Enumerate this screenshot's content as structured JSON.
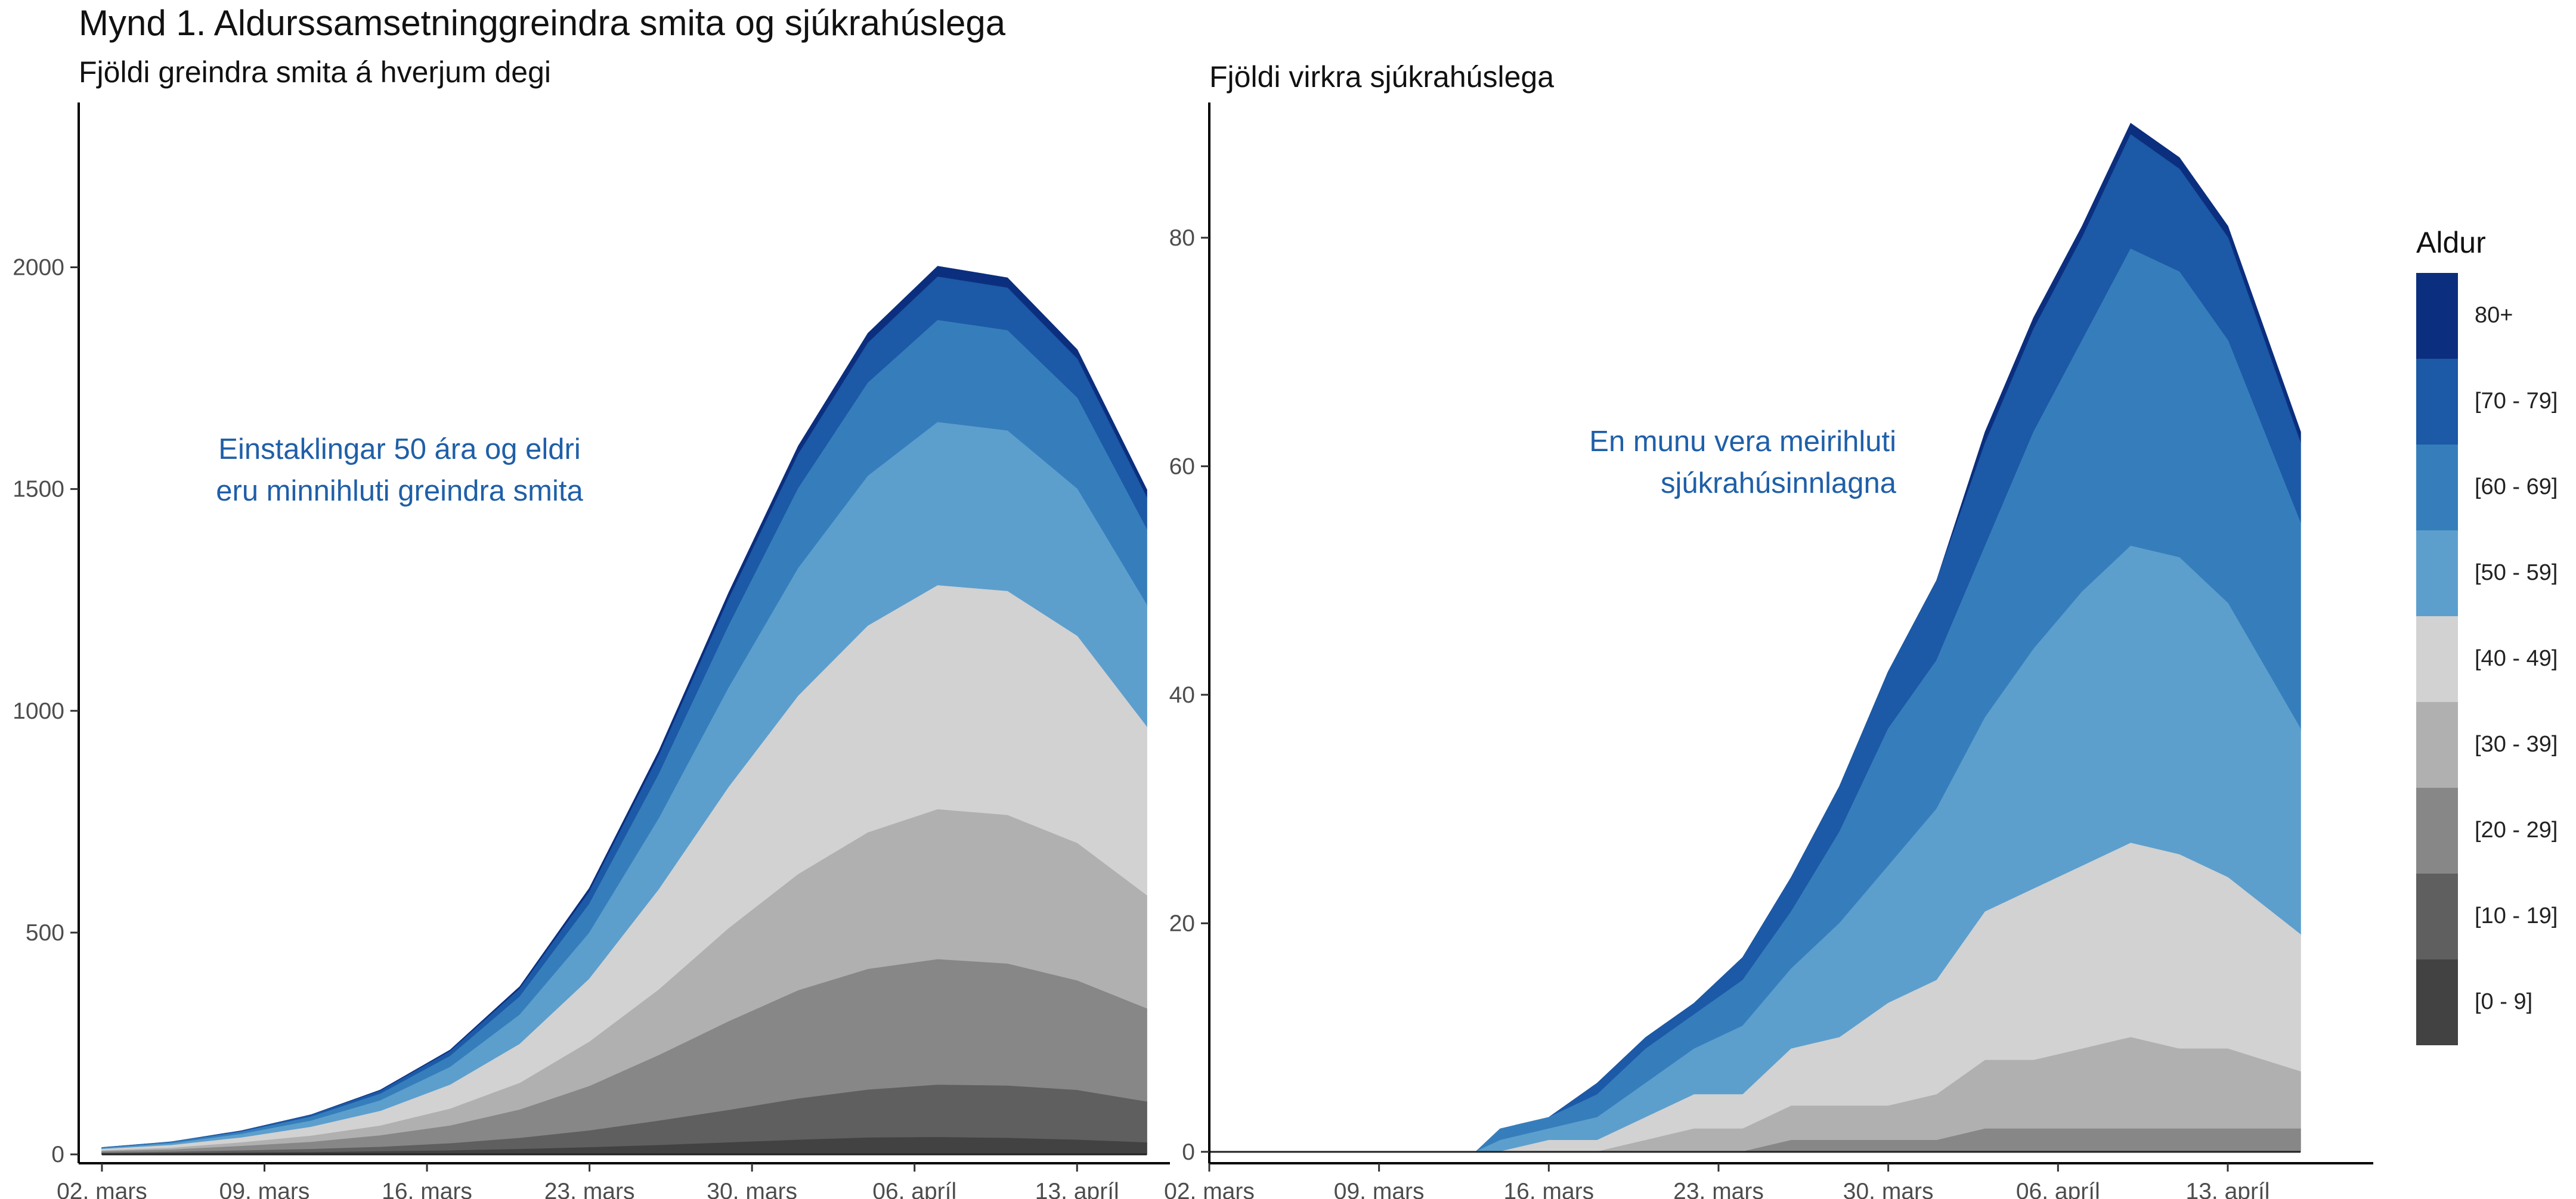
{
  "title": "Mynd 1. Aldurssamsetninggreindra smita og sjúkrahúslega",
  "legend": {
    "title": "Aldur",
    "entries": [
      {
        "label": "80+",
        "color": "#0b2f7e"
      },
      {
        "label": "[70 - 79]",
        "color": "#1c59a6"
      },
      {
        "label": "[60 - 69]",
        "color": "#367ebb"
      },
      {
        "label": "[50 - 59]",
        "color": "#5c9fcd"
      },
      {
        "label": "[40 - 49]",
        "color": "#d2d2d2"
      },
      {
        "label": "[30 - 39]",
        "color": "#b0b0b0"
      },
      {
        "label": "[20 - 29]",
        "color": "#878787"
      },
      {
        "label": "[10 - 19]",
        "color": "#5f5f5f"
      },
      {
        "label": "[0 - 9]",
        "color": "#424242"
      }
    ]
  },
  "chart_data": [
    {
      "type": "area",
      "stacked": true,
      "title": "Fjöldi greindra smita á hverjum degi",
      "xlabel": "",
      "ylabel": "",
      "x_dates": [
        "2020-03-02",
        "2020-03-05",
        "2020-03-08",
        "2020-03-11",
        "2020-03-14",
        "2020-03-17",
        "2020-03-20",
        "2020-03-23",
        "2020-03-26",
        "2020-03-29",
        "2020-04-01",
        "2020-04-04",
        "2020-04-07",
        "2020-04-10",
        "2020-04-13",
        "2020-04-16"
      ],
      "x_ticks": [
        "02. mars",
        "09. mars",
        "16. mars",
        "23. mars",
        "30. mars",
        "06. apríl",
        "13. apríl"
      ],
      "x_range": [
        "2020-03-01",
        "2020-04-17"
      ],
      "y_ticks": [
        0,
        500,
        1000,
        1500,
        2000
      ],
      "ylim": [
        -20,
        2350
      ],
      "grid": false,
      "annotation": "Einstaklingar 50 ára og eldri\neru minnihluti greindra smita",
      "series": [
        {
          "name": "[0 - 9]",
          "values": [
            1,
            2,
            3,
            4,
            6,
            8,
            11,
            15,
            20,
            26,
            32,
            37,
            38,
            36,
            32,
            26
          ]
        },
        {
          "name": "[10 - 19]",
          "values": [
            2,
            3,
            5,
            7,
            10,
            16,
            25,
            38,
            55,
            73,
            93,
            108,
            118,
            118,
            112,
            92
          ]
        },
        {
          "name": "[20 - 29]",
          "values": [
            3,
            5,
            10,
            16,
            26,
            40,
            64,
            100,
            148,
            200,
            244,
            272,
            283,
            275,
            247,
            210
          ]
        },
        {
          "name": "[30 - 39]",
          "values": [
            2,
            4,
            8,
            14,
            22,
            38,
            60,
            100,
            148,
            210,
            262,
            308,
            338,
            335,
            310,
            255
          ]
        },
        {
          "name": "[40 - 49]",
          "values": [
            3,
            6,
            11,
            20,
            33,
            54,
            88,
            142,
            226,
            318,
            402,
            466,
            505,
            505,
            467,
            380
          ]
        },
        {
          "name": "[50 - 59]",
          "values": [
            2,
            4,
            8,
            14,
            24,
            40,
            66,
            104,
            160,
            224,
            288,
            338,
            368,
            362,
            332,
            275
          ]
        },
        {
          "name": "[60 - 69]",
          "values": [
            1,
            3,
            5,
            9,
            15,
            25,
            41,
            65,
            100,
            140,
            180,
            210,
            230,
            226,
            205,
            170
          ]
        },
        {
          "name": "[70 - 79]",
          "values": [
            1,
            1,
            2,
            4,
            7,
            11,
            18,
            28,
            42,
            60,
            77,
            90,
            98,
            96,
            88,
            72
          ]
        },
        {
          "name": "80+",
          "values": [
            0,
            0,
            1,
            1,
            2,
            3,
            5,
            8,
            11,
            15,
            19,
            22,
            24,
            23,
            21,
            18
          ]
        }
      ]
    },
    {
      "type": "area",
      "stacked": true,
      "title": "Fjöldi virkra sjúkrahúslega",
      "xlabel": "",
      "ylabel": "",
      "x_dates": [
        "2020-03-02",
        "2020-03-05",
        "2020-03-08",
        "2020-03-11",
        "2020-03-13",
        "2020-03-14",
        "2020-03-16",
        "2020-03-18",
        "2020-03-20",
        "2020-03-22",
        "2020-03-24",
        "2020-03-26",
        "2020-03-28",
        "2020-03-30",
        "2020-04-01",
        "2020-04-03",
        "2020-04-05",
        "2020-04-07",
        "2020-04-09",
        "2020-04-11",
        "2020-04-13",
        "2020-04-16"
      ],
      "x_ticks": [
        "02. mars",
        "09. mars",
        "16. mars",
        "23. mars",
        "30. mars",
        "06. apríl",
        "13. apríl"
      ],
      "x_range": [
        "2020-03-02",
        "2020-04-19"
      ],
      "y_ticks": [
        0,
        20,
        40,
        60,
        80
      ],
      "ylim": [
        -1,
        91
      ],
      "grid": false,
      "annotation": "En munu vera meirihluti\nsjúkrahúsinnlagna",
      "series": [
        {
          "name": "[0 - 9]",
          "values": [
            0,
            0,
            0,
            0,
            0,
            0,
            0,
            0,
            0,
            0,
            0,
            0,
            0,
            0,
            0,
            0,
            0,
            0,
            0,
            0,
            0,
            0
          ]
        },
        {
          "name": "[10 - 19]",
          "values": [
            0,
            0,
            0,
            0,
            0,
            0,
            0,
            0,
            0,
            0,
            0,
            0,
            0,
            0,
            0,
            0,
            0,
            0,
            0,
            0,
            0,
            0
          ]
        },
        {
          "name": "[20 - 29]",
          "values": [
            0,
            0,
            0,
            0,
            0,
            0,
            0,
            0,
            0,
            0,
            0,
            1,
            1,
            1,
            1,
            2,
            2,
            2,
            2,
            2,
            2,
            2
          ]
        },
        {
          "name": "[30 - 39]",
          "values": [
            0,
            0,
            0,
            0,
            0,
            0,
            0,
            0,
            1,
            2,
            2,
            3,
            3,
            3,
            4,
            6,
            6,
            7,
            8,
            7,
            7,
            5
          ]
        },
        {
          "name": "[40 - 49]",
          "values": [
            0,
            0,
            0,
            0,
            0,
            0,
            1,
            1,
            2,
            3,
            3,
            5,
            6,
            9,
            10,
            13,
            15,
            16,
            17,
            17,
            15,
            12
          ]
        },
        {
          "name": "[50 - 59]",
          "values": [
            0,
            0,
            0,
            0,
            0,
            1,
            1,
            2,
            3,
            4,
            6,
            7,
            10,
            12,
            15,
            17,
            21,
            24,
            26,
            26,
            24,
            18
          ]
        },
        {
          "name": "[60 - 69]",
          "values": [
            0,
            0,
            0,
            0,
            0,
            1,
            1,
            2,
            3,
            3,
            4,
            5,
            8,
            12,
            13,
            15,
            19,
            22,
            26,
            25,
            23,
            18
          ]
        },
        {
          "name": "[70 - 79]",
          "values": [
            0,
            0,
            0,
            0,
            0,
            0,
            0,
            1,
            1,
            1,
            2,
            3,
            4,
            5,
            7,
            9,
            9,
            9,
            10,
            9,
            9,
            7
          ]
        },
        {
          "name": "80+",
          "values": [
            0,
            0,
            0,
            0,
            0,
            0,
            0,
            0,
            0,
            0,
            0,
            0,
            0,
            0,
            0,
            1,
            1,
            1,
            1,
            1,
            1,
            1
          ]
        }
      ]
    }
  ]
}
